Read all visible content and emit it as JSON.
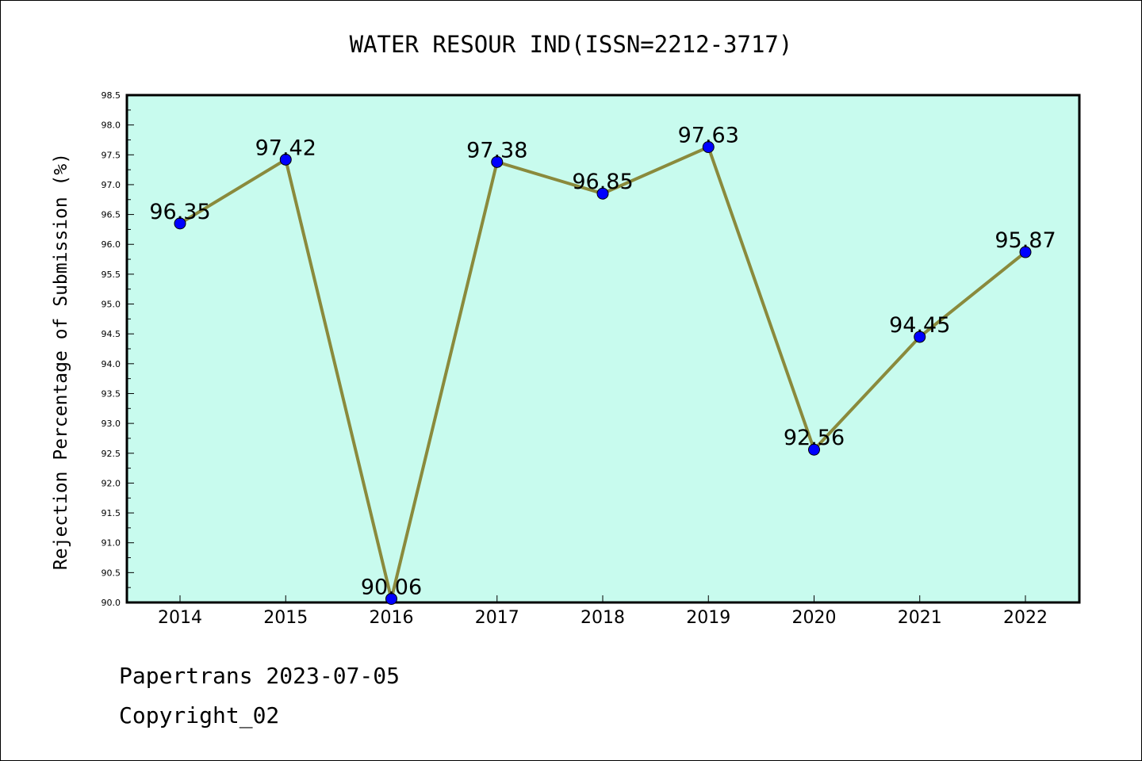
{
  "chart_data": {
    "type": "line",
    "title": "WATER RESOUR IND(ISSN=2212-3717)",
    "xlabel": "",
    "ylabel": "Rejection Percentage of Submission (%)",
    "categories": [
      "2014",
      "2015",
      "2016",
      "2017",
      "2018",
      "2019",
      "2020",
      "2021",
      "2022"
    ],
    "series": [
      {
        "values": [
          96.35,
          97.42,
          90.06,
          97.38,
          96.85,
          97.63,
          92.56,
          94.45,
          95.87
        ]
      }
    ],
    "data_labels": [
      "96.35",
      "97.42",
      "90.06",
      "97.38",
      "96.85",
      "97.63",
      "92.56",
      "94.45",
      "95.87"
    ],
    "ylim": [
      90.0,
      98.5
    ],
    "yticks": [
      "90.0",
      "90.5",
      "91.0",
      "91.5",
      "92.0",
      "92.5",
      "93.0",
      "93.5",
      "94.0",
      "94.5",
      "95.0",
      "95.5",
      "96.0",
      "96.5",
      "97.0",
      "97.5",
      "98.0",
      "98.5"
    ],
    "grid": false,
    "colors": {
      "plot_background": "#c8fbee",
      "line": "#8a8a3c",
      "marker": "#0000ff"
    }
  },
  "footer": {
    "line1": "Papertrans 2023-07-05",
    "line2": "Copyright_02"
  }
}
